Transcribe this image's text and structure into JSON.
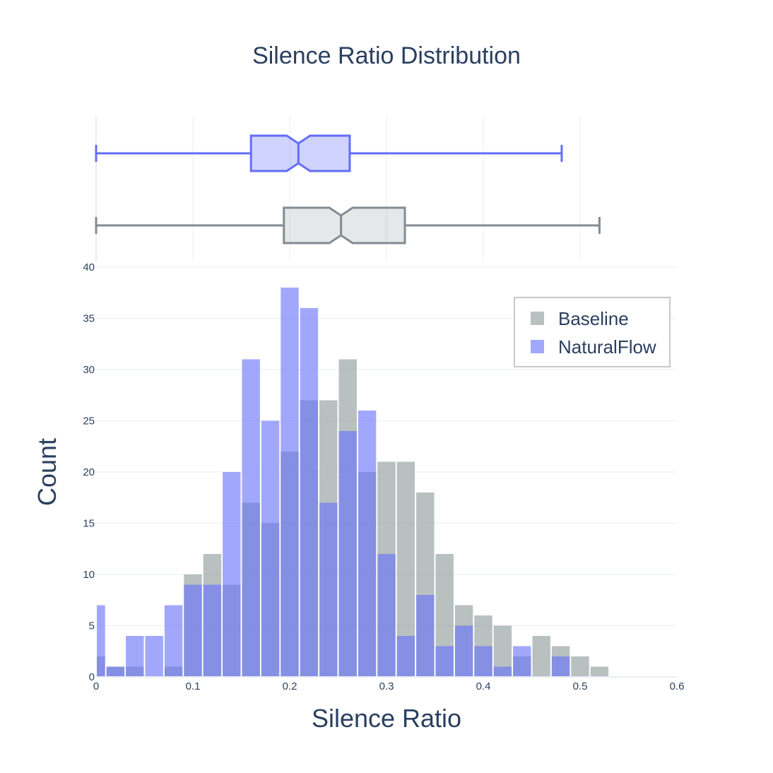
{
  "chart_data": {
    "type": "histogram",
    "title": "Silence Ratio Distribution",
    "xlabel": "Silence Ratio",
    "ylabel": "Count",
    "xlim": [
      0,
      0.6
    ],
    "ylim": [
      0,
      40
    ],
    "x_ticks": [
      "0",
      "0.1",
      "0.2",
      "0.3",
      "0.4",
      "0.5",
      "0.6"
    ],
    "y_ticks": [
      "0",
      "5",
      "10",
      "15",
      "20",
      "25",
      "30",
      "35",
      "40"
    ],
    "bin_width": 0.02,
    "bin_starts": [
      -0.01,
      0.01,
      0.03,
      0.05,
      0.07,
      0.09,
      0.11,
      0.13,
      0.15,
      0.17,
      0.19,
      0.21,
      0.23,
      0.25,
      0.27,
      0.29,
      0.31,
      0.33,
      0.35,
      0.37,
      0.39,
      0.41,
      0.43,
      0.45,
      0.47,
      0.49,
      0.51,
      0.53
    ],
    "grid": true,
    "legend_position": "top-right",
    "series": [
      {
        "name": "Baseline",
        "color": "#7f8c8d",
        "values": [
          2,
          1,
          1,
          0,
          1,
          10,
          12,
          9,
          17,
          15,
          22,
          27,
          27,
          31,
          20,
          21,
          21,
          18,
          12,
          7,
          6,
          5,
          2,
          4,
          3,
          2,
          1,
          0
        ],
        "box": {
          "min": 0.0,
          "q1": 0.194,
          "median": 0.253,
          "q3": 0.319,
          "max": 0.52
        }
      },
      {
        "name": "NaturalFlow",
        "color": "#636efa",
        "values": [
          7,
          1,
          4,
          4,
          7,
          9,
          9,
          20,
          31,
          25,
          38,
          36,
          17,
          24,
          26,
          12,
          4,
          8,
          3,
          5,
          3,
          1,
          3,
          0,
          2,
          0,
          0,
          0
        ],
        "box": {
          "min": 0.0,
          "q1": 0.16,
          "median": 0.209,
          "q3": 0.262,
          "max": 0.481
        }
      }
    ]
  }
}
